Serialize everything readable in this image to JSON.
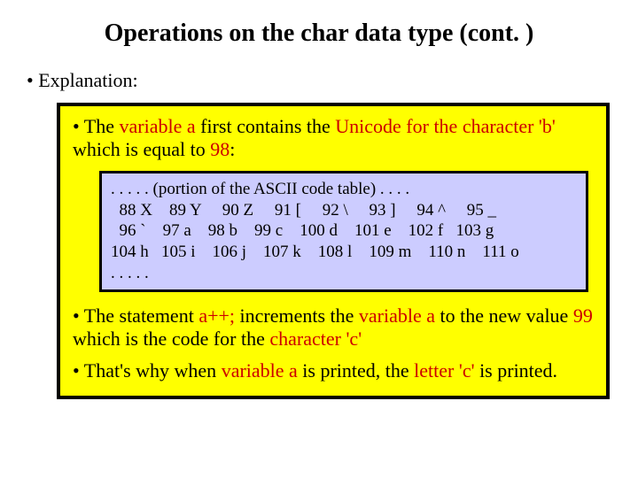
{
  "title": "Operations on the char data type (cont. )",
  "bullet1": "•  Explanation:",
  "para1": {
    "bullet": "• The ",
    "r1": "variable a",
    "t1": " first contains the ",
    "r2": "Unicode for the character 'b'",
    "t2": " which is equal to ",
    "r3": "98",
    "t3": ":"
  },
  "ascii": {
    "line1": ". . . . . (portion of the ASCII code table) . . . .",
    "line2": "  88 X    89 Y     90 Z     91 [     92 \\     93 ]     94 ^     95 _",
    "line3": "  96 `    97 a    98 b    99 c    100 d    101 e    102 f   103 g",
    "line4": "104 h   105 i    106 j    107 k    108 l    109 m    110 n    111 o",
    "line5": ". . . . ."
  },
  "para2": {
    "bullet": "• The statement ",
    "r1": "a++;",
    "t1": " increments the ",
    "r2": "variable a",
    "t2": " to the new value ",
    "r3": "99",
    "t3": " which is the code for the ",
    "r4": "character 'c'"
  },
  "para3": {
    "bullet": "• That's why when ",
    "r1": "variable a",
    "t1": " is printed, the ",
    "r2": "letter 'c'",
    "t2": " is printed."
  }
}
